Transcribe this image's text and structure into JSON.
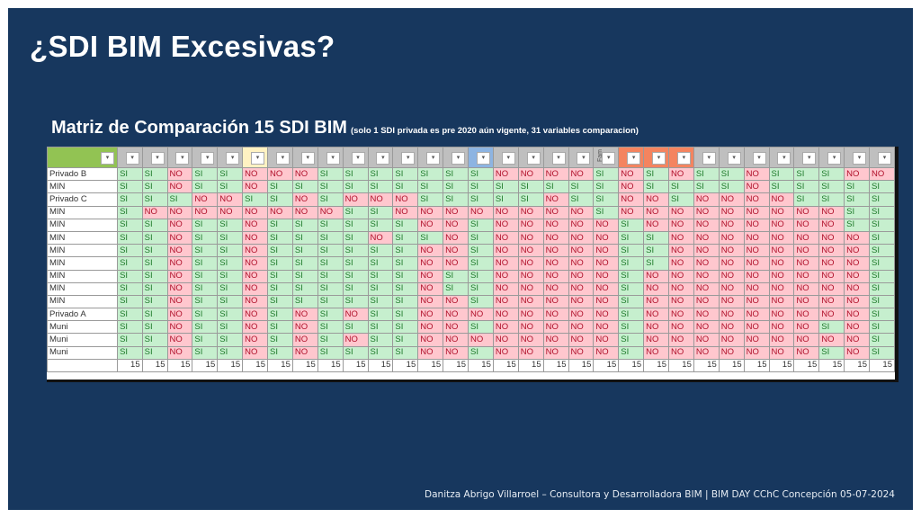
{
  "slide": {
    "title": "¿SDI BIM Excesivas?",
    "subtitle": "Matriz de Comparación  15 SDI BIM",
    "subtitle_note": "(solo 1 SDI  privada  es pre 2020 aún vigente, 31 variables  comparacion)",
    "footer": "Danitza Abrigo Villarroel – Consultora y Desarrolladora BIM | BIM DAY CChC Concepción 05-07-2024"
  },
  "colors": {
    "background": "#17375e",
    "si_bg": "#c6efce",
    "no_bg": "#ffc7ce",
    "header_default": "#bfbfbf",
    "header_label": "#92c353"
  },
  "table": {
    "header_colors": [
      "#bfbfbf",
      "#bfbfbf",
      "#bfbfbf",
      "#bfbfbf",
      "#bfbfbf",
      "#fff2c2",
      "#bfbfbf",
      "#bfbfbf",
      "#bfbfbf",
      "#bfbfbf",
      "#bfbfbf",
      "#bfbfbf",
      "#bfbfbf",
      "#bfbfbf",
      "#8db4e2",
      "#bfbfbf",
      "#bfbfbf",
      "#bfbfbf",
      "#bfbfbf",
      "#bfbfbf",
      "#f4845f",
      "#f4845f",
      "#f4845f",
      "#bfbfbf",
      "#bfbfbf",
      "#bfbfbf",
      "#bfbfbf",
      "#bfbfbf",
      "#bfbfbf",
      "#bfbfbf",
      "#bfbfbf"
    ],
    "header_rotated_text": {
      "col": 19,
      "text": "Fam"
    },
    "dropdown_glyph": "▾",
    "rows": [
      {
        "label": "Privado B",
        "values": [
          "SI",
          "SI",
          "NO",
          "SI",
          "SI",
          "NO",
          "NO",
          "NO",
          "SI",
          "SI",
          "SI",
          "SI",
          "SI",
          "SI",
          "SI",
          "NO",
          "NO",
          "NO",
          "NO",
          "SI",
          "NO",
          "SI",
          "NO",
          "SI",
          "SI",
          "NO",
          "SI",
          "SI",
          "SI",
          "NO",
          "NO"
        ]
      },
      {
        "label": "MIN",
        "values": [
          "SI",
          "SI",
          "NO",
          "SI",
          "SI",
          "NO",
          "SI",
          "SI",
          "SI",
          "SI",
          "SI",
          "SI",
          "SI",
          "SI",
          "SI",
          "SI",
          "SI",
          "SI",
          "SI",
          "SI",
          "NO",
          "SI",
          "SI",
          "SI",
          "SI",
          "NO",
          "SI",
          "SI",
          "SI",
          "SI",
          "SI"
        ]
      },
      {
        "label": "Privado C",
        "values": [
          "SI",
          "SI",
          "SI",
          "NO",
          "NO",
          "SI",
          "SI",
          "NO",
          "SI",
          "NO",
          "NO",
          "NO",
          "SI",
          "SI",
          "SI",
          "SI",
          "SI",
          "NO",
          "SI",
          "SI",
          "NO",
          "NO",
          "SI",
          "NO",
          "NO",
          "NO",
          "NO",
          "SI",
          "SI",
          "SI",
          "SI"
        ]
      },
      {
        "label": "MIN",
        "values": [
          "SI",
          "NO",
          "NO",
          "NO",
          "NO",
          "NO",
          "NO",
          "NO",
          "NO",
          "SI",
          "SI",
          "NO",
          "NO",
          "NO",
          "NO",
          "NO",
          "NO",
          "NO",
          "NO",
          "SI",
          "NO",
          "NO",
          "NO",
          "NO",
          "NO",
          "NO",
          "NO",
          "NO",
          "NO",
          "SI",
          "SI"
        ]
      },
      {
        "label": "MIN",
        "values": [
          "SI",
          "SI",
          "NO",
          "SI",
          "SI",
          "NO",
          "SI",
          "SI",
          "SI",
          "SI",
          "SI",
          "SI",
          "NO",
          "NO",
          "SI",
          "NO",
          "NO",
          "NO",
          "NO",
          "NO",
          "SI",
          "NO",
          "NO",
          "NO",
          "NO",
          "NO",
          "NO",
          "NO",
          "NO",
          "SI",
          "SI"
        ]
      },
      {
        "label": "MIN",
        "values": [
          "SI",
          "SI",
          "NO",
          "SI",
          "SI",
          "NO",
          "SI",
          "SI",
          "SI",
          "SI",
          "NO",
          "SI",
          "SI",
          "NO",
          "SI",
          "NO",
          "NO",
          "NO",
          "NO",
          "NO",
          "SI",
          "SI",
          "NO",
          "NO",
          "NO",
          "NO",
          "NO",
          "NO",
          "NO",
          "NO",
          "SI"
        ]
      },
      {
        "label": "MIN",
        "values": [
          "SI",
          "SI",
          "NO",
          "SI",
          "SI",
          "NO",
          "SI",
          "SI",
          "SI",
          "SI",
          "SI",
          "SI",
          "NO",
          "NO",
          "SI",
          "NO",
          "NO",
          "NO",
          "NO",
          "NO",
          "SI",
          "SI",
          "NO",
          "NO",
          "NO",
          "NO",
          "NO",
          "NO",
          "NO",
          "NO",
          "SI"
        ]
      },
      {
        "label": "MIN",
        "values": [
          "SI",
          "SI",
          "NO",
          "SI",
          "SI",
          "NO",
          "SI",
          "SI",
          "SI",
          "SI",
          "SI",
          "SI",
          "NO",
          "NO",
          "SI",
          "NO",
          "NO",
          "NO",
          "NO",
          "NO",
          "SI",
          "SI",
          "NO",
          "NO",
          "NO",
          "NO",
          "NO",
          "NO",
          "NO",
          "NO",
          "SI"
        ]
      },
      {
        "label": "MIN",
        "values": [
          "SI",
          "SI",
          "NO",
          "SI",
          "SI",
          "NO",
          "SI",
          "SI",
          "SI",
          "SI",
          "SI",
          "SI",
          "NO",
          "SI",
          "SI",
          "NO",
          "NO",
          "NO",
          "NO",
          "NO",
          "SI",
          "NO",
          "NO",
          "NO",
          "NO",
          "NO",
          "NO",
          "NO",
          "NO",
          "NO",
          "SI"
        ]
      },
      {
        "label": "MIN",
        "values": [
          "SI",
          "SI",
          "NO",
          "SI",
          "SI",
          "NO",
          "SI",
          "SI",
          "SI",
          "SI",
          "SI",
          "SI",
          "NO",
          "SI",
          "SI",
          "NO",
          "NO",
          "NO",
          "NO",
          "NO",
          "SI",
          "NO",
          "NO",
          "NO",
          "NO",
          "NO",
          "NO",
          "NO",
          "NO",
          "NO",
          "SI"
        ]
      },
      {
        "label": "MIN",
        "values": [
          "SI",
          "SI",
          "NO",
          "SI",
          "SI",
          "NO",
          "SI",
          "SI",
          "SI",
          "SI",
          "SI",
          "SI",
          "NO",
          "NO",
          "SI",
          "NO",
          "NO",
          "NO",
          "NO",
          "NO",
          "SI",
          "NO",
          "NO",
          "NO",
          "NO",
          "NO",
          "NO",
          "NO",
          "NO",
          "NO",
          "SI"
        ]
      },
      {
        "label": "Privado A",
        "values": [
          "SI",
          "SI",
          "NO",
          "SI",
          "SI",
          "NO",
          "SI",
          "NO",
          "SI",
          "NO",
          "SI",
          "SI",
          "NO",
          "NO",
          "NO",
          "NO",
          "NO",
          "NO",
          "NO",
          "NO",
          "SI",
          "NO",
          "NO",
          "NO",
          "NO",
          "NO",
          "NO",
          "NO",
          "NO",
          "NO",
          "SI"
        ]
      },
      {
        "label": "Muni",
        "values": [
          "SI",
          "SI",
          "NO",
          "SI",
          "SI",
          "NO",
          "SI",
          "NO",
          "SI",
          "SI",
          "SI",
          "SI",
          "NO",
          "NO",
          "SI",
          "NO",
          "NO",
          "NO",
          "NO",
          "NO",
          "SI",
          "NO",
          "NO",
          "NO",
          "NO",
          "NO",
          "NO",
          "NO",
          "SI",
          "NO",
          "SI"
        ]
      },
      {
        "label": "Muni",
        "values": [
          "SI",
          "SI",
          "NO",
          "SI",
          "SI",
          "NO",
          "SI",
          "NO",
          "SI",
          "NO",
          "SI",
          "SI",
          "NO",
          "NO",
          "NO",
          "NO",
          "NO",
          "NO",
          "NO",
          "NO",
          "SI",
          "NO",
          "NO",
          "NO",
          "NO",
          "NO",
          "NO",
          "NO",
          "NO",
          "NO",
          "SI"
        ]
      },
      {
        "label": "Muni",
        "values": [
          "SI",
          "SI",
          "NO",
          "SI",
          "SI",
          "NO",
          "SI",
          "NO",
          "SI",
          "SI",
          "SI",
          "SI",
          "NO",
          "NO",
          "SI",
          "NO",
          "NO",
          "NO",
          "NO",
          "NO",
          "SI",
          "NO",
          "NO",
          "NO",
          "NO",
          "NO",
          "NO",
          "NO",
          "SI",
          "NO",
          "SI"
        ]
      }
    ],
    "totals": [
      "15",
      "15",
      "15",
      "15",
      "15",
      "15",
      "15",
      "15",
      "15",
      "15",
      "15",
      "15",
      "15",
      "15",
      "15",
      "15",
      "15",
      "15",
      "15",
      "15",
      "15",
      "15",
      "15",
      "15",
      "15",
      "15",
      "15",
      "15",
      "15",
      "15",
      "15"
    ]
  }
}
